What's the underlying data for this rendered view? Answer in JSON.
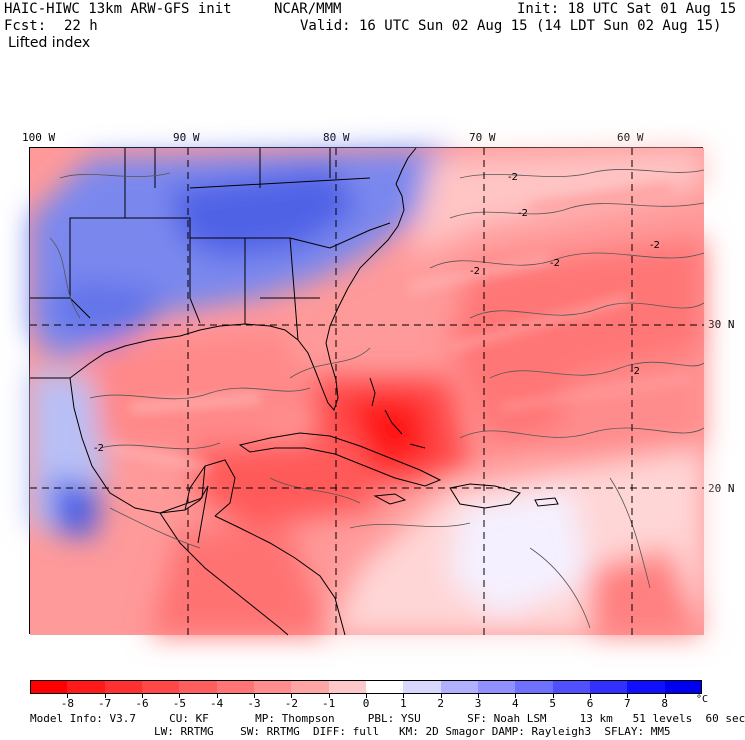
{
  "header": {
    "model": "HAIC-HIWC 13km ARW-GFS init",
    "center": "NCAR/MMM",
    "init": "Init: 18 UTC Sat 01 Aug 15",
    "fcst_label": "Fcst:",
    "fcst_value": "22 h",
    "valid": "Valid: 16 UTC Sun 02 Aug 15 (14 LDT Sun 02 Aug 15)",
    "field": "Lifted index"
  },
  "map": {
    "lon_labels": [
      "100 W",
      "90 W",
      "80 W",
      "70 W",
      "60 W"
    ],
    "lat_labels": [
      "30 N",
      "20 N"
    ],
    "contour_label": "-2"
  },
  "colorbar": {
    "labels": [
      "-8",
      "-7",
      "-6",
      "-5",
      "-4",
      "-3",
      "-2",
      "-1",
      "0",
      "1",
      "2",
      "3",
      "4",
      "5",
      "6",
      "7",
      "8"
    ],
    "unit": "°C",
    "colors": [
      "#ff0000",
      "#ff1a1a",
      "#ff3030",
      "#ff4747",
      "#ff5e5e",
      "#ff7575",
      "#ff8d8d",
      "#ffa5a5",
      "#ffc8c8",
      "#ffffff",
      "#d8d8ff",
      "#b0b0ff",
      "#9090ff",
      "#7070ff",
      "#5050ff",
      "#3030ff",
      "#1010ff",
      "#0000f0"
    ]
  },
  "footer": {
    "line1": "Model Info: V3.7     CU: KF       MP: Thompson     PBL: YSU       SF: Noah LSM     13 km   51 levels  60 sec",
    "line2": "LW: RRTMG    SW: RRTMG  DIFF: full   KM: 2D Smagor DAMP: Rayleigh3  SFLAY: MM5"
  }
}
